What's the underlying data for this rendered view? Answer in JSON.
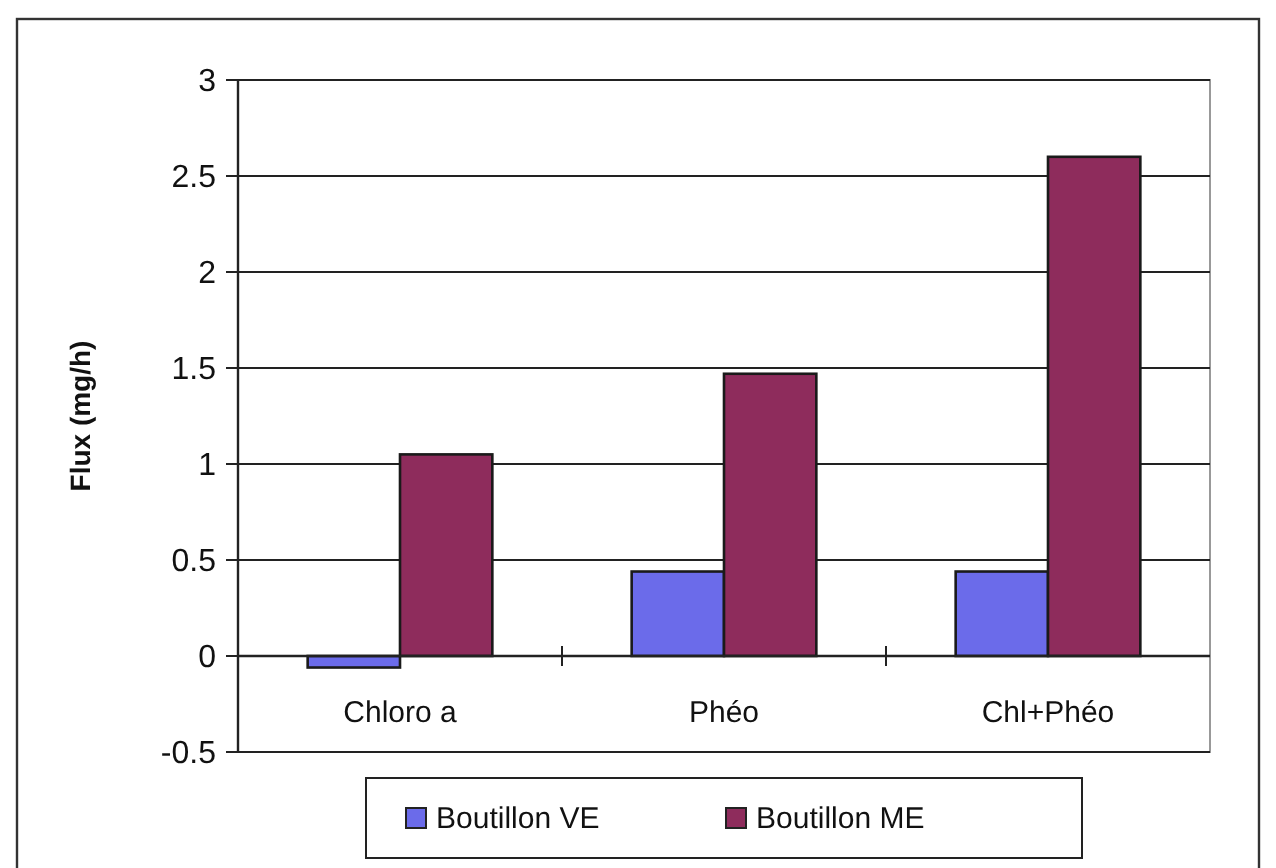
{
  "chart_data": {
    "type": "bar",
    "categories": [
      "Chloro a",
      "Phéo",
      "Chl+Phéo"
    ],
    "series": [
      {
        "name": "Boutillon VE",
        "color": "#6b6bea",
        "values": [
          -0.06,
          0.44,
          0.44
        ]
      },
      {
        "name": "Boutillon ME",
        "color": "#8e2c5c",
        "values": [
          1.05,
          1.47,
          2.6
        ]
      }
    ],
    "ylabel": "Flux (mg/h)",
    "ylim": [
      -0.5,
      3
    ],
    "yticks": [
      -0.5,
      0,
      0.5,
      1,
      1.5,
      2,
      2.5,
      3
    ],
    "grid": "y",
    "legend": "bottom"
  }
}
